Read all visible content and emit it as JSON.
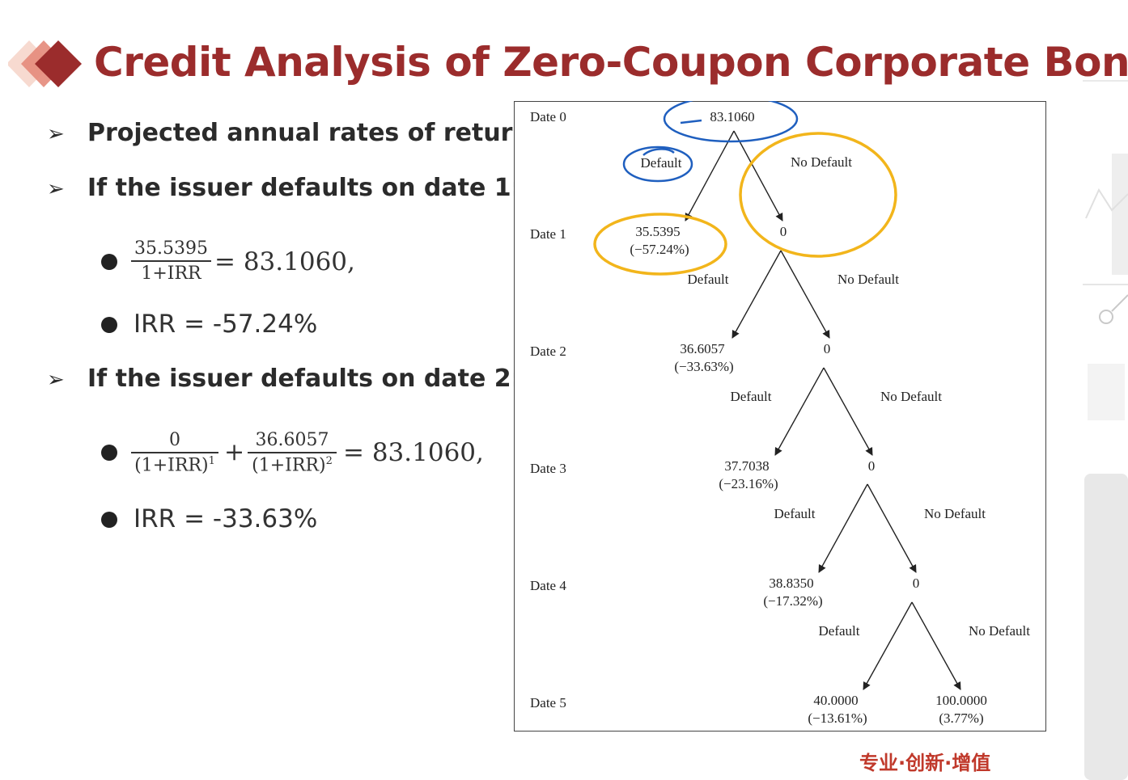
{
  "slide": {
    "title": "Credit Analysis of Zero-Coupon Corporate Bond",
    "accent_color": "#9b2c2c",
    "footer": "专业·创新·增值"
  },
  "bullets": {
    "b1": "Projected annual rates of return",
    "b2": "If the issuer defaults on date 1:",
    "b3": "If the issuer defaults on date 2:"
  },
  "eq1": {
    "num": "35.5395",
    "den": "1+IRR",
    "rhs": "= 83.1060,",
    "irr": "IRR = -57.24%"
  },
  "eq2": {
    "num1": "0",
    "den1": "(1+IRR)",
    "exp1": "1",
    "plus": "+",
    "num2": "36.6057",
    "den2": "(1+IRR)",
    "exp2": "2",
    "rhs": "= 83.1060,",
    "irr": "IRR = -33.63%"
  },
  "tree": {
    "dates": [
      "Date 0",
      "Date 1",
      "Date 2",
      "Date 3",
      "Date 4",
      "Date 5"
    ],
    "root": "83.1060",
    "default_label": "Default",
    "no_default_label": "No Default",
    "default_values": [
      "35.5395",
      "36.6057",
      "37.7038",
      "38.8350",
      "40.0000"
    ],
    "default_returns": [
      "(−57.24%)",
      "(−33.63%)",
      "(−23.16%)",
      "(−17.32%)",
      "(−13.61%)"
    ],
    "no_default_values": [
      "0",
      "0",
      "0",
      "0"
    ],
    "final_no_default_value": "100.0000",
    "final_no_default_return": "(3.77%)",
    "annotation_colors": {
      "blue": "#1f5fbf",
      "yellow": "#f2b51b"
    }
  }
}
